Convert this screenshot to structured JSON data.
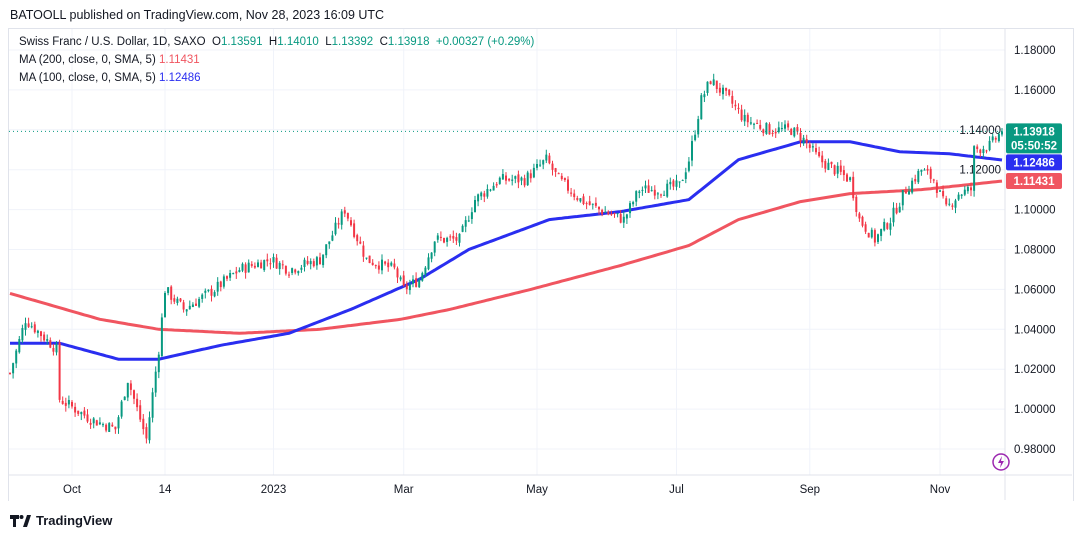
{
  "header": {
    "published": "BATOOLL published on TradingView.com, Nov 28, 2023 16:09 UTC"
  },
  "legend": {
    "symbol": "Swiss Franc / U.S. Dollar, 1D, SAXO",
    "o_label": "O",
    "o": "1.13591",
    "h_label": "H",
    "h": "1.14010",
    "l_label": "L",
    "l": "1.13392",
    "c_label": "C",
    "c": "1.13918",
    "change": "+0.00327 (+0.29%)",
    "ma200_label": "MA (200, close, 0, SMA, 5)",
    "ma200_value": "1.11431",
    "ma100_label": "MA (100, close, 0, SMA, 5)",
    "ma100_value": "1.12486"
  },
  "price_labels": {
    "last": "1.13918",
    "countdown": "05:50:52",
    "ma100": "1.12486",
    "ma200": "1.11431"
  },
  "footer": {
    "brand": "TradingView"
  },
  "colors": {
    "up": "#089981",
    "down": "#f23645",
    "ma100": "#2a2ef0",
    "ma200": "#f05560"
  },
  "chart_data": {
    "type": "candlestick",
    "title": "Swiss Franc / U.S. Dollar, 1D, SAXO",
    "ylim": [
      0.97,
      1.19
    ],
    "y_ticks": [
      "1.18000",
      "1.16000",
      "1.14000",
      "1.12000",
      "1.10000",
      "1.08000",
      "1.06000",
      "1.04000",
      "1.02000",
      "1.00000",
      "0.98000"
    ],
    "x_ticks": [
      {
        "label": "Oct",
        "bar": 20
      },
      {
        "label": "14",
        "bar": 50
      },
      {
        "label": "2023",
        "bar": 85
      },
      {
        "label": "Mar",
        "bar": 127
      },
      {
        "label": "May",
        "bar": 170
      },
      {
        "label": "Jul",
        "bar": 215
      },
      {
        "label": "Sep",
        "bar": 258
      },
      {
        "label": "Nov",
        "bar": 300
      }
    ],
    "bars": 321,
    "close_anchors": [
      [
        0,
        1.018
      ],
      [
        5,
        1.045
      ],
      [
        15,
        1.03
      ],
      [
        16,
        1.005
      ],
      [
        26,
        0.995
      ],
      [
        34,
        0.99
      ],
      [
        38,
        1.015
      ],
      [
        44,
        0.985
      ],
      [
        48,
        1.03
      ],
      [
        50,
        1.06
      ],
      [
        56,
        1.05
      ],
      [
        66,
        1.06
      ],
      [
        74,
        1.07
      ],
      [
        84,
        1.075
      ],
      [
        90,
        1.07
      ],
      [
        100,
        1.075
      ],
      [
        108,
        1.1
      ],
      [
        115,
        1.075
      ],
      [
        124,
        1.07
      ],
      [
        127,
        1.06
      ],
      [
        132,
        1.065
      ],
      [
        137,
        1.085
      ],
      [
        145,
        1.085
      ],
      [
        150,
        1.105
      ],
      [
        158,
        1.115
      ],
      [
        166,
        1.115
      ],
      [
        173,
        1.125
      ],
      [
        177,
        1.115
      ],
      [
        184,
        1.105
      ],
      [
        190,
        1.1
      ],
      [
        198,
        1.095
      ],
      [
        203,
        1.11
      ],
      [
        210,
        1.11
      ],
      [
        216,
        1.112
      ],
      [
        219,
        1.125
      ],
      [
        223,
        1.155
      ],
      [
        226,
        1.165
      ],
      [
        232,
        1.155
      ],
      [
        237,
        1.145
      ],
      [
        245,
        1.14
      ],
      [
        252,
        1.14
      ],
      [
        256,
        1.135
      ],
      [
        261,
        1.125
      ],
      [
        271,
        1.115
      ],
      [
        274,
        1.095
      ],
      [
        279,
        1.085
      ],
      [
        284,
        1.095
      ],
      [
        289,
        1.11
      ],
      [
        294,
        1.12
      ],
      [
        298,
        1.115
      ],
      [
        302,
        1.1
      ],
      [
        306,
        1.108
      ],
      [
        310,
        1.11
      ],
      [
        311,
        1.13
      ],
      [
        316,
        1.132
      ],
      [
        320,
        1.13918
      ]
    ],
    "ma100_anchors": [
      [
        0,
        1.033
      ],
      [
        16,
        1.033
      ],
      [
        35,
        1.025
      ],
      [
        48,
        1.025
      ],
      [
        68,
        1.032
      ],
      [
        90,
        1.038
      ],
      [
        110,
        1.05
      ],
      [
        132,
        1.065
      ],
      [
        148,
        1.08
      ],
      [
        174,
        1.095
      ],
      [
        197,
        1.099
      ],
      [
        219,
        1.105
      ],
      [
        235,
        1.125
      ],
      [
        255,
        1.134
      ],
      [
        271,
        1.134
      ],
      [
        287,
        1.129
      ],
      [
        303,
        1.128
      ],
      [
        320,
        1.12486
      ]
    ],
    "ma200_anchors": [
      [
        0,
        1.058
      ],
      [
        29,
        1.045
      ],
      [
        48,
        1.04
      ],
      [
        74,
        1.038
      ],
      [
        100,
        1.04
      ],
      [
        126,
        1.045
      ],
      [
        142,
        1.05
      ],
      [
        168,
        1.06
      ],
      [
        197,
        1.072
      ],
      [
        219,
        1.082
      ],
      [
        235,
        1.095
      ],
      [
        255,
        1.104
      ],
      [
        271,
        1.108
      ],
      [
        294,
        1.11
      ],
      [
        320,
        1.11431
      ]
    ],
    "last_price": 1.13918
  }
}
